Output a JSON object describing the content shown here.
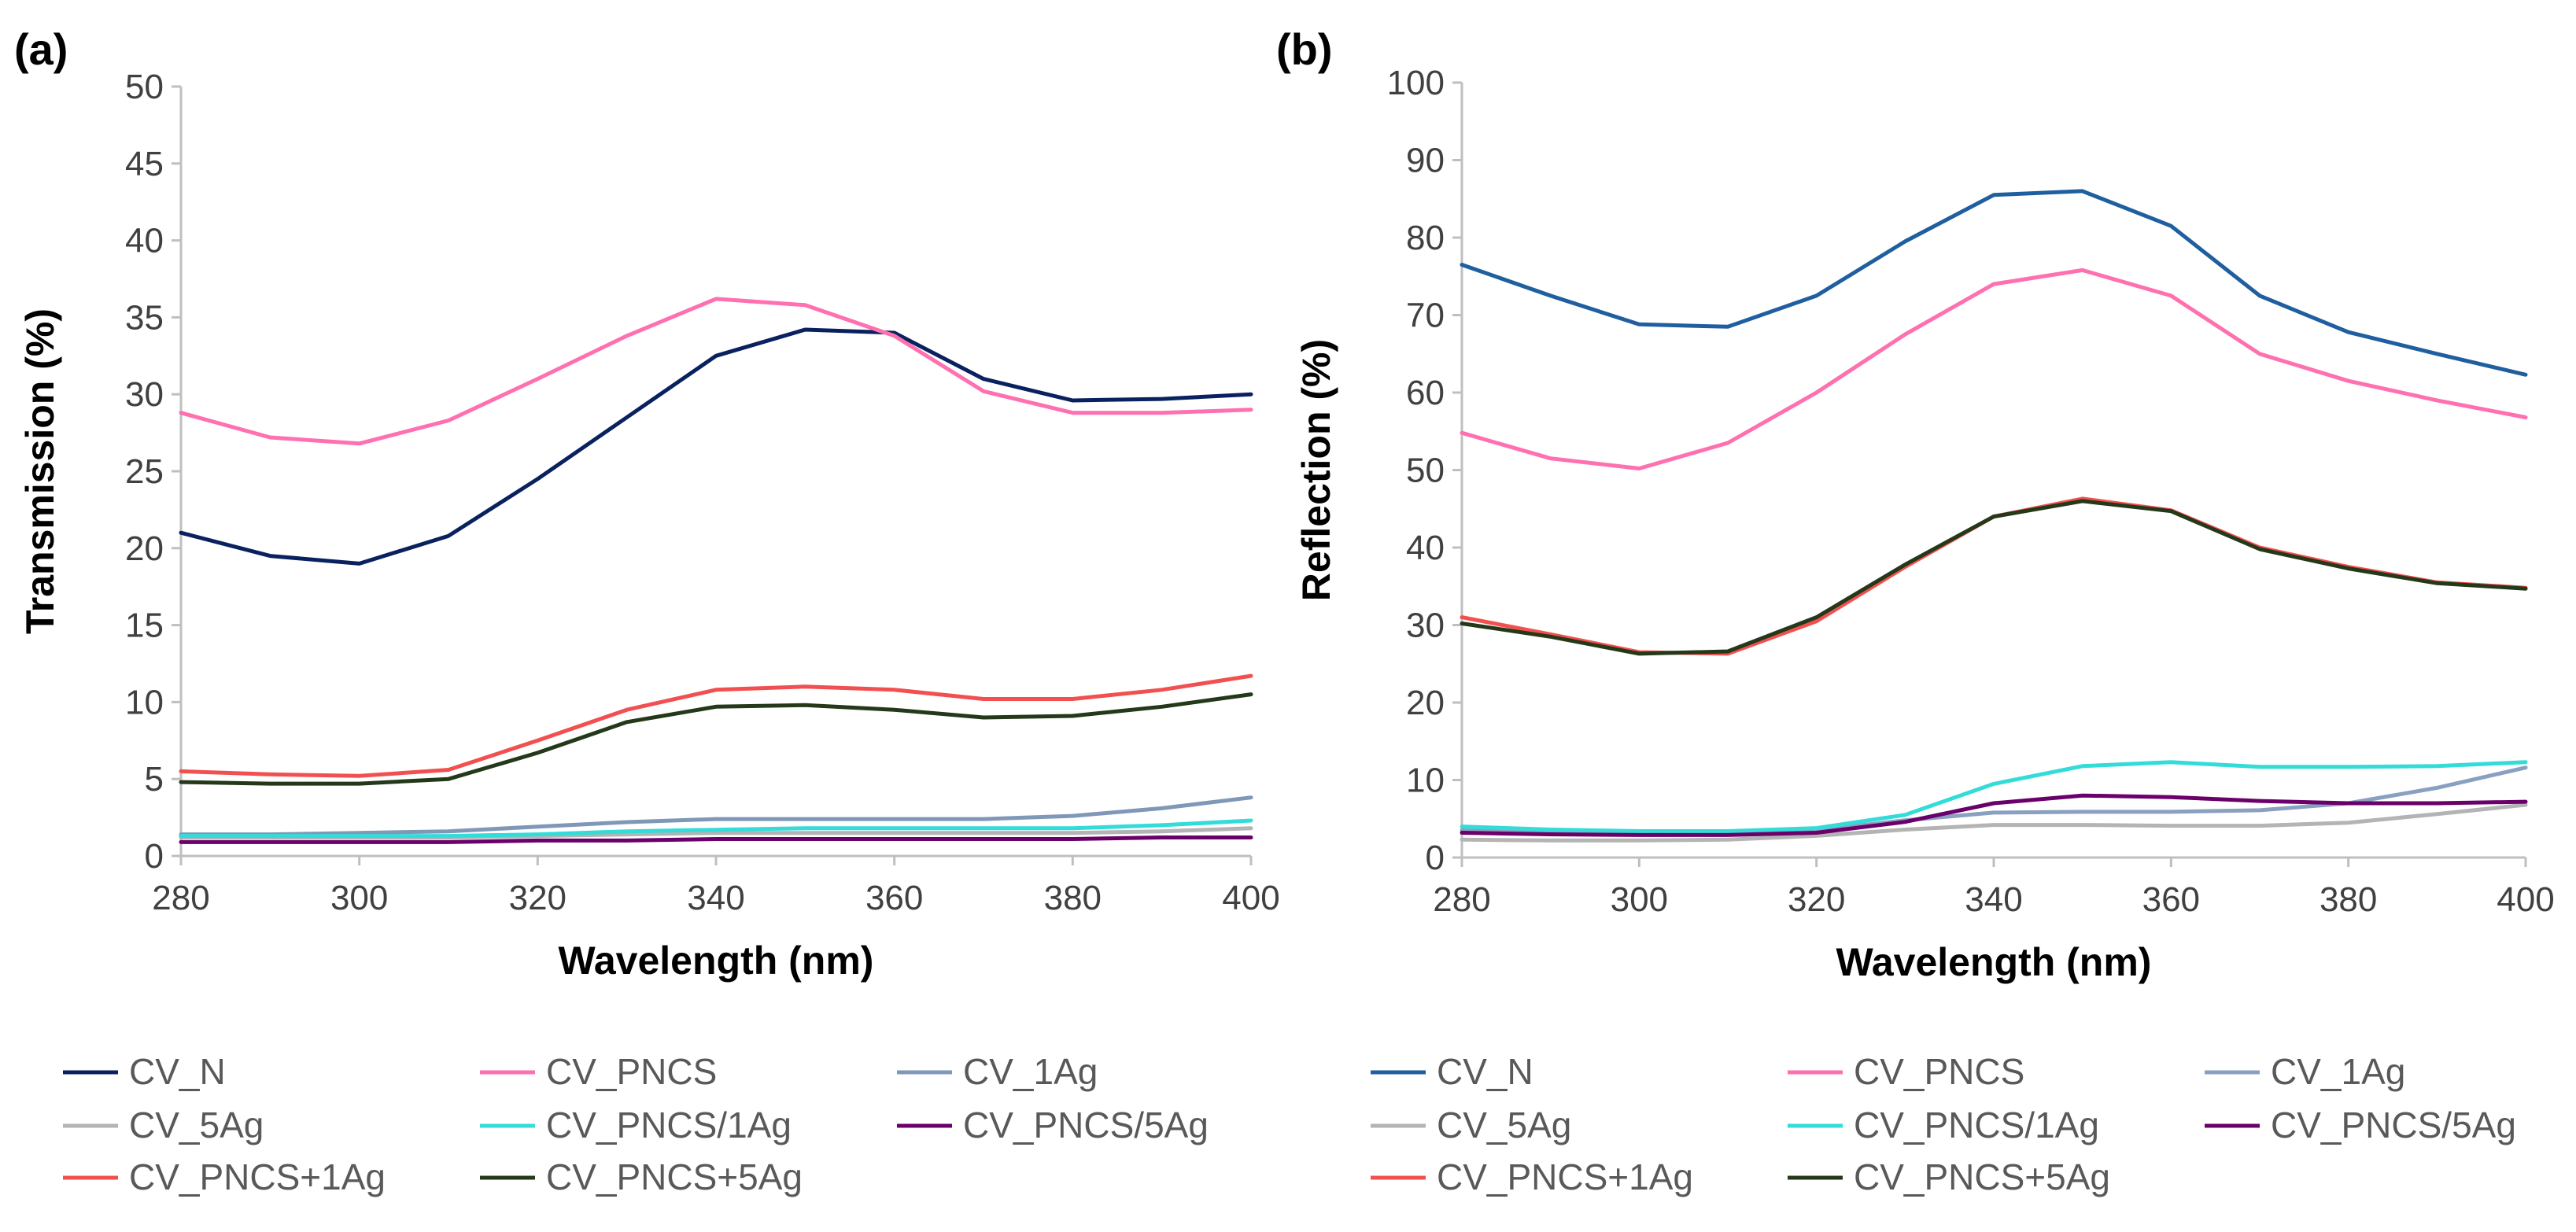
{
  "chart_data": [
    {
      "type": "line",
      "panel_label": "(a)",
      "xlabel": "Wavelength (nm)",
      "ylabel": "Transmission (%)",
      "xlim": [
        280,
        400
      ],
      "ylim": [
        0,
        50
      ],
      "x_ticks": [
        "280",
        "300",
        "320",
        "340",
        "360",
        "380",
        "400"
      ],
      "y_ticks": [
        "0",
        "5",
        "10",
        "15",
        "20",
        "25",
        "30",
        "35",
        "40",
        "45",
        "50"
      ],
      "x": [
        280,
        290,
        300,
        310,
        320,
        330,
        340,
        350,
        360,
        370,
        380,
        390,
        400
      ],
      "series": [
        {
          "name": "CV_N",
          "color": "#0a2160",
          "values": [
            21,
            19.5,
            19,
            20.8,
            24.5,
            28.5,
            32.5,
            34.2,
            34,
            31,
            29.6,
            29.7,
            30
          ]
        },
        {
          "name": "CV_PNCS",
          "color": "#ff70b0",
          "values": [
            28.8,
            27.2,
            26.8,
            28.3,
            31,
            33.8,
            36.2,
            35.8,
            33.8,
            30.2,
            28.8,
            28.8,
            29
          ]
        },
        {
          "name": "CV_1Ag",
          "color": "#7f98b8",
          "values": [
            1.4,
            1.4,
            1.5,
            1.6,
            1.9,
            2.2,
            2.4,
            2.4,
            2.4,
            2.4,
            2.6,
            3.1,
            3.8
          ]
        },
        {
          "name": "CV_5Ag",
          "color": "#b4b4b4",
          "values": [
            1.2,
            1.2,
            1.2,
            1.2,
            1.3,
            1.4,
            1.5,
            1.5,
            1.5,
            1.5,
            1.5,
            1.6,
            1.8
          ]
        },
        {
          "name": "CV_PNCS/1Ag",
          "color": "#33dcd8",
          "values": [
            1.3,
            1.3,
            1.3,
            1.3,
            1.4,
            1.6,
            1.7,
            1.8,
            1.8,
            1.8,
            1.8,
            2,
            2.3
          ]
        },
        {
          "name": "CV_PNCS/5Ag",
          "color": "#6a006a",
          "values": [
            0.9,
            0.9,
            0.9,
            0.9,
            1,
            1,
            1.1,
            1.1,
            1.1,
            1.1,
            1.1,
            1.2,
            1.2
          ]
        },
        {
          "name": "CV_PNCS+1Ag",
          "color": "#f25050",
          "values": [
            5.5,
            5.3,
            5.2,
            5.6,
            7.5,
            9.5,
            10.8,
            11,
            10.8,
            10.2,
            10.2,
            10.8,
            11.7
          ]
        },
        {
          "name": "CV_PNCS+5Ag",
          "color": "#24381a",
          "values": [
            4.8,
            4.7,
            4.7,
            5,
            6.7,
            8.7,
            9.7,
            9.8,
            9.5,
            9,
            9.1,
            9.7,
            10.5
          ]
        }
      ]
    },
    {
      "type": "line",
      "panel_label": "(b)",
      "xlabel": "Wavelength (nm)",
      "ylabel": "Reflection (%)",
      "xlim": [
        280,
        400
      ],
      "ylim": [
        0,
        100
      ],
      "x_ticks": [
        "280",
        "300",
        "320",
        "340",
        "360",
        "380",
        "400"
      ],
      "y_ticks": [
        "0",
        "10",
        "20",
        "30",
        "40",
        "50",
        "60",
        "70",
        "80",
        "90",
        "100"
      ],
      "x": [
        280,
        290,
        300,
        310,
        320,
        330,
        340,
        350,
        360,
        370,
        380,
        390,
        400
      ],
      "series": [
        {
          "name": "CV_N",
          "color": "#1f5fa0",
          "values": [
            76.5,
            72.5,
            68.8,
            68.5,
            72.5,
            79.5,
            85.5,
            86,
            81.5,
            72.5,
            67.8,
            65,
            62.3
          ]
        },
        {
          "name": "CV_PNCS",
          "color": "#ff70b0",
          "values": [
            54.8,
            51.5,
            50.2,
            53.5,
            60,
            67.5,
            74,
            75.8,
            72.5,
            65,
            61.5,
            59,
            56.8
          ]
        },
        {
          "name": "CV_1Ag",
          "color": "#8aa0c0",
          "values": [
            3.5,
            3.3,
            3.2,
            3.2,
            3.5,
            4.8,
            5.8,
            5.9,
            5.9,
            6.1,
            7,
            9,
            11.6
          ]
        },
        {
          "name": "CV_5Ag",
          "color": "#b4b4b4",
          "values": [
            2.3,
            2.2,
            2.2,
            2.3,
            2.8,
            3.6,
            4.2,
            4.2,
            4.1,
            4.1,
            4.5,
            5.6,
            6.8
          ]
        },
        {
          "name": "CV_PNCS/1Ag",
          "color": "#33dcd8",
          "values": [
            4,
            3.6,
            3.4,
            3.4,
            3.8,
            5.5,
            9.5,
            11.8,
            12.3,
            11.7,
            11.7,
            11.8,
            12.3
          ]
        },
        {
          "name": "CV_PNCS/5Ag",
          "color": "#6a006a",
          "values": [
            3.2,
            3,
            2.9,
            2.9,
            3.2,
            4.6,
            7,
            8,
            7.8,
            7.3,
            7,
            7,
            7.2
          ]
        },
        {
          "name": "CV_PNCS+1Ag",
          "color": "#f25050",
          "values": [
            31,
            28.8,
            26.5,
            26.3,
            30.5,
            37.5,
            44,
            46.3,
            44.8,
            40,
            37.5,
            35.5,
            34.8
          ]
        },
        {
          "name": "CV_PNCS+5Ag",
          "color": "#24381a",
          "values": [
            30.2,
            28.5,
            26.3,
            26.6,
            31,
            37.8,
            44,
            46,
            44.7,
            39.8,
            37.3,
            35.4,
            34.7
          ]
        }
      ]
    }
  ]
}
